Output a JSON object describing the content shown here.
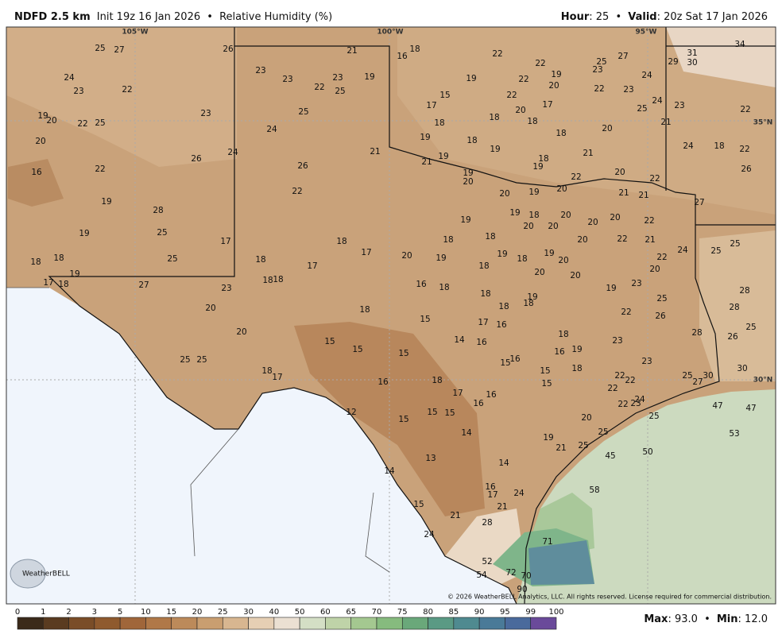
{
  "header": {
    "product": "NDFD 2.5 km",
    "init": "Init 19z 16 Jan 2026",
    "separator": "•",
    "field": "Relative Humidity (%)",
    "hour_label": "Hour",
    "hour": ": 25",
    "valid_label": "Valid",
    "valid": ": 20z Sat 17 Jan 2026"
  },
  "map": {
    "longitudes": [
      "105°W",
      "100°W",
      "95°W"
    ],
    "latitudes": [
      "35°N",
      "30°N"
    ],
    "station_values": [
      25,
      27,
      26,
      21,
      16,
      18,
      22,
      22,
      25,
      27,
      31,
      29,
      30,
      34,
      24,
      23,
      22,
      23,
      23,
      22,
      23,
      25,
      19,
      19,
      22,
      19,
      20,
      23,
      22,
      23,
      24,
      19,
      20,
      22,
      25,
      23,
      25,
      17,
      15,
      22,
      17,
      20,
      18,
      18,
      25,
      24,
      23,
      21,
      22,
      20,
      24,
      18,
      18,
      18,
      20,
      21,
      19,
      19,
      19,
      18,
      21,
      24,
      18,
      22,
      16,
      22,
      26,
      24,
      26,
      21,
      19,
      20,
      19,
      22,
      20,
      20,
      22,
      26,
      22,
      20,
      19,
      21,
      21,
      27,
      19,
      28,
      19,
      18,
      20,
      19,
      20,
      20,
      20,
      20,
      22,
      19,
      25,
      17,
      18,
      18,
      18,
      20,
      22,
      21,
      24,
      25,
      25,
      18,
      18,
      19,
      25,
      18,
      17,
      17,
      20,
      19,
      19,
      18,
      19,
      18,
      20,
      22,
      20,
      17,
      18,
      27,
      23,
      18,
      18,
      16,
      18,
      20,
      20,
      19,
      23,
      28,
      18,
      18,
      19,
      18,
      18,
      20,
      25,
      22,
      28,
      26,
      20,
      15,
      17,
      16,
      18,
      28,
      25,
      26,
      15,
      15,
      15,
      14,
      16,
      16,
      19,
      23,
      25,
      25,
      15,
      16,
      15,
      18,
      23,
      30,
      18,
      17,
      16,
      18,
      17,
      16,
      16,
      15,
      22,
      22,
      22,
      25,
      30,
      27,
      12,
      15,
      15,
      15,
      20,
      22,
      23,
      24,
      25,
      47,
      47,
      14,
      19,
      21,
      25,
      25,
      53,
      45,
      50,
      13,
      14,
      14,
      16,
      17,
      24,
      58,
      15,
      21,
      21,
      28,
      24,
      71,
      52,
      54,
      72,
      70,
      90
    ],
    "logo": "WeatherBELL",
    "copyright": "© 2026 WeatherBELL Analytics, LLC. All rights reserved. License required for commercial distribution."
  },
  "colorbar": {
    "ticks": [
      0,
      1,
      2,
      3,
      5,
      10,
      15,
      20,
      25,
      30,
      40,
      50,
      60,
      65,
      70,
      75,
      80,
      85,
      90,
      95,
      99,
      100
    ],
    "colors": [
      "#3b2a1a",
      "#5a3b20",
      "#7a4d28",
      "#8f5a2e",
      "#a0663a",
      "#b07848",
      "#bc8a5a",
      "#c99e70",
      "#d8b690",
      "#e6cfb4",
      "#ebe0d2",
      "#d4dfc5",
      "#bfd3a8",
      "#a4c890",
      "#86bb7e",
      "#6aa87a",
      "#5a9a84",
      "#4f8a90",
      "#4a7a98",
      "#4a6a9c",
      "#6a4a9a"
    ]
  },
  "footer": {
    "max_label": "Max",
    "max": ": 93.0",
    "separator": "•",
    "min_label": "Min",
    "min": ": 12.0"
  }
}
